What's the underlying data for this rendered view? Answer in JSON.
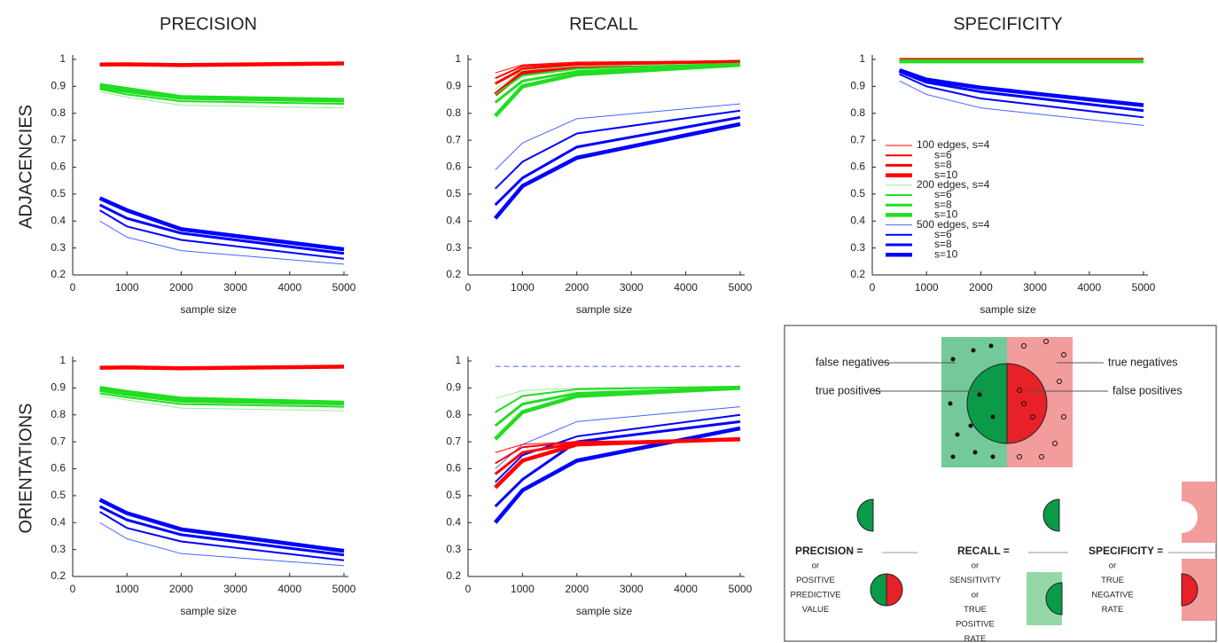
{
  "headers": {
    "columns": [
      "PRECISION",
      "RECALL",
      "SPECIFICITY"
    ],
    "rows": [
      "ADJACENCIES",
      "ORIENTATIONS"
    ]
  },
  "chart_data": [
    {
      "type": "line",
      "xlabel": "sample size",
      "x": [
        500,
        1000,
        2000,
        5000
      ],
      "xlim": [
        0,
        5000
      ],
      "xticks": [
        0,
        1000,
        2000,
        3000,
        4000,
        5000
      ],
      "ylim": [
        0.2,
        1
      ],
      "yticks": [
        0.2,
        0.3,
        0.4,
        0.5,
        0.6,
        0.7,
        0.8,
        0.9,
        1
      ],
      "series": [
        {
          "color": "#ff0000",
          "width": 1,
          "values": [
            0.978,
            0.979,
            0.976,
            0.982
          ]
        },
        {
          "color": "#ff0000",
          "width": 2,
          "values": [
            0.979,
            0.98,
            0.977,
            0.983
          ]
        },
        {
          "color": "#ff0000",
          "width": 3,
          "values": [
            0.98,
            0.981,
            0.978,
            0.984
          ]
        },
        {
          "color": "#ff0000",
          "width": 4.5,
          "values": [
            0.981,
            0.982,
            0.979,
            0.985
          ]
        },
        {
          "color": "#99ee99",
          "width": 1,
          "values": [
            0.88,
            0.86,
            0.83,
            0.82
          ]
        },
        {
          "color": "#22dd22",
          "width": 2,
          "values": [
            0.89,
            0.87,
            0.845,
            0.835
          ]
        },
        {
          "color": "#22dd22",
          "width": 3,
          "values": [
            0.895,
            0.88,
            0.855,
            0.845
          ]
        },
        {
          "color": "#22dd22",
          "width": 4.5,
          "values": [
            0.905,
            0.89,
            0.86,
            0.85
          ]
        },
        {
          "color": "#4466ff",
          "width": 1,
          "values": [
            0.4,
            0.34,
            0.29,
            0.24
          ]
        },
        {
          "color": "#0000ff",
          "width": 2,
          "values": [
            0.44,
            0.38,
            0.33,
            0.26
          ]
        },
        {
          "color": "#0000ff",
          "width": 3,
          "values": [
            0.46,
            0.41,
            0.355,
            0.28
          ]
        },
        {
          "color": "#0000ff",
          "width": 4.5,
          "values": [
            0.485,
            0.44,
            0.37,
            0.295
          ]
        }
      ]
    },
    {
      "type": "line",
      "xlabel": "sample size",
      "x": [
        500,
        1000,
        2000,
        5000
      ],
      "xlim": [
        0,
        5000
      ],
      "xticks": [
        0,
        1000,
        2000,
        3000,
        4000,
        5000
      ],
      "ylim": [
        0.2,
        1
      ],
      "yticks": [
        0.2,
        0.3,
        0.4,
        0.5,
        0.6,
        0.7,
        0.8,
        0.9,
        1
      ],
      "series": [
        {
          "color": "#ff0000",
          "width": 1,
          "values": [
            0.95,
            0.98,
            0.99,
            0.995
          ]
        },
        {
          "color": "#ff0000",
          "width": 2,
          "values": [
            0.93,
            0.975,
            0.985,
            0.995
          ]
        },
        {
          "color": "#ff0000",
          "width": 3,
          "values": [
            0.91,
            0.965,
            0.98,
            0.993
          ]
        },
        {
          "color": "#ff0000",
          "width": 4.5,
          "values": [
            0.87,
            0.95,
            0.975,
            0.99
          ]
        },
        {
          "color": "#99ee99",
          "width": 1,
          "values": [
            0.89,
            0.96,
            0.975,
            0.985
          ]
        },
        {
          "color": "#22dd22",
          "width": 2,
          "values": [
            0.87,
            0.94,
            0.965,
            0.985
          ]
        },
        {
          "color": "#22dd22",
          "width": 3,
          "values": [
            0.84,
            0.92,
            0.955,
            0.98
          ]
        },
        {
          "color": "#22dd22",
          "width": 4.5,
          "values": [
            0.79,
            0.9,
            0.945,
            0.98
          ]
        },
        {
          "color": "#4466ff",
          "width": 1,
          "values": [
            0.59,
            0.69,
            0.78,
            0.835
          ]
        },
        {
          "color": "#0000ff",
          "width": 2,
          "values": [
            0.52,
            0.62,
            0.725,
            0.81
          ]
        },
        {
          "color": "#0000ff",
          "width": 3,
          "values": [
            0.46,
            0.56,
            0.675,
            0.785
          ]
        },
        {
          "color": "#0000ff",
          "width": 4.5,
          "values": [
            0.41,
            0.53,
            0.635,
            0.76
          ]
        }
      ]
    },
    {
      "type": "line",
      "xlabel": "sample size",
      "x": [
        500,
        1000,
        2000,
        5000
      ],
      "xlim": [
        0,
        5000
      ],
      "xticks": [
        0,
        1000,
        2000,
        3000,
        4000,
        5000
      ],
      "ylim": [
        0.2,
        1
      ],
      "yticks": [
        0.2,
        0.3,
        0.4,
        0.5,
        0.6,
        0.7,
        0.8,
        0.9,
        1
      ],
      "legend": "left",
      "series": [
        {
          "name": "100 edges, s=4",
          "color": "#ff0000",
          "width": 1,
          "values": [
            0.999,
            0.999,
            0.999,
            0.999
          ]
        },
        {
          "name": "s=6",
          "color": "#ff0000",
          "width": 2,
          "values": [
            0.999,
            0.999,
            0.999,
            0.999
          ]
        },
        {
          "name": "s=8",
          "color": "#ff0000",
          "width": 3,
          "values": [
            0.999,
            0.999,
            0.999,
            0.999
          ]
        },
        {
          "name": "s=10",
          "color": "#ff0000",
          "width": 4.5,
          "values": [
            0.998,
            0.998,
            0.998,
            0.998
          ]
        },
        {
          "name": "200 edges, s=4",
          "color": "#99ee99",
          "width": 1,
          "values": [
            0.996,
            0.996,
            0.996,
            0.996
          ]
        },
        {
          "name": "s=6",
          "color": "#22dd22",
          "width": 2,
          "values": [
            0.995,
            0.995,
            0.995,
            0.995
          ]
        },
        {
          "name": "s=8",
          "color": "#22dd22",
          "width": 3,
          "values": [
            0.994,
            0.994,
            0.994,
            0.994
          ]
        },
        {
          "name": "s=10",
          "color": "#22dd22",
          "width": 4.5,
          "values": [
            0.993,
            0.993,
            0.993,
            0.993
          ]
        },
        {
          "name": "500 edges, s=4",
          "color": "#4466ff",
          "width": 1,
          "values": [
            0.92,
            0.87,
            0.82,
            0.755
          ]
        },
        {
          "name": "s=6",
          "color": "#0000ff",
          "width": 2,
          "values": [
            0.945,
            0.9,
            0.855,
            0.785
          ]
        },
        {
          "name": "s=8",
          "color": "#0000ff",
          "width": 3,
          "values": [
            0.955,
            0.915,
            0.88,
            0.81
          ]
        },
        {
          "name": "s=10",
          "color": "#0000ff",
          "width": 4.5,
          "values": [
            0.96,
            0.925,
            0.895,
            0.83
          ]
        }
      ]
    },
    {
      "type": "line",
      "xlabel": "sample size",
      "x": [
        500,
        1000,
        2000,
        5000
      ],
      "xlim": [
        0,
        5000
      ],
      "xticks": [
        0,
        1000,
        2000,
        3000,
        4000,
        5000
      ],
      "ylim": [
        0.2,
        1
      ],
      "yticks": [
        0.2,
        0.3,
        0.4,
        0.5,
        0.6,
        0.7,
        0.8,
        0.9,
        1
      ],
      "series": [
        {
          "color": "#ff0000",
          "width": 1,
          "values": [
            0.972,
            0.973,
            0.97,
            0.976
          ]
        },
        {
          "color": "#ff0000",
          "width": 2,
          "values": [
            0.973,
            0.974,
            0.971,
            0.977
          ]
        },
        {
          "color": "#ff0000",
          "width": 3,
          "values": [
            0.974,
            0.975,
            0.972,
            0.978
          ]
        },
        {
          "color": "#ff0000",
          "width": 4.5,
          "values": [
            0.975,
            0.976,
            0.973,
            0.979
          ]
        },
        {
          "color": "#99ee99",
          "width": 1,
          "values": [
            0.87,
            0.855,
            0.825,
            0.815
          ]
        },
        {
          "color": "#22dd22",
          "width": 2,
          "values": [
            0.88,
            0.865,
            0.84,
            0.83
          ]
        },
        {
          "color": "#22dd22",
          "width": 3,
          "values": [
            0.89,
            0.875,
            0.85,
            0.84
          ]
        },
        {
          "color": "#22dd22",
          "width": 4.5,
          "values": [
            0.9,
            0.885,
            0.86,
            0.845
          ]
        },
        {
          "color": "#4466ff",
          "width": 1,
          "values": [
            0.4,
            0.34,
            0.285,
            0.24
          ]
        },
        {
          "color": "#0000ff",
          "width": 2,
          "values": [
            0.44,
            0.38,
            0.33,
            0.26
          ]
        },
        {
          "color": "#0000ff",
          "width": 3,
          "values": [
            0.46,
            0.41,
            0.355,
            0.28
          ]
        },
        {
          "color": "#0000ff",
          "width": 4.5,
          "values": [
            0.485,
            0.435,
            0.375,
            0.295
          ]
        }
      ]
    },
    {
      "type": "line",
      "xlabel": "sample size",
      "x": [
        500,
        1000,
        2000,
        5000
      ],
      "xlim": [
        0,
        5000
      ],
      "xticks": [
        0,
        1000,
        2000,
        3000,
        4000,
        5000
      ],
      "ylim": [
        0.2,
        1
      ],
      "yticks": [
        0.2,
        0.3,
        0.4,
        0.5,
        0.6,
        0.7,
        0.8,
        0.9,
        1
      ],
      "series": [
        {
          "color": "#4466ff",
          "width": 1,
          "dash": true,
          "values": [
            0.98,
            0.98,
            0.98,
            0.98
          ]
        },
        {
          "color": "#99ee99",
          "width": 1,
          "values": [
            0.86,
            0.89,
            0.9,
            0.905
          ]
        },
        {
          "color": "#22dd22",
          "width": 2,
          "values": [
            0.81,
            0.87,
            0.895,
            0.905
          ]
        },
        {
          "color": "#22dd22",
          "width": 3,
          "values": [
            0.76,
            0.84,
            0.88,
            0.9
          ]
        },
        {
          "color": "#22dd22",
          "width": 4.5,
          "values": [
            0.71,
            0.81,
            0.87,
            0.9
          ]
        },
        {
          "color": "#4466ff",
          "width": 1,
          "values": [
            0.6,
            0.69,
            0.775,
            0.83
          ]
        },
        {
          "color": "#0000ff",
          "width": 2,
          "values": [
            0.55,
            0.65,
            0.72,
            0.8
          ]
        },
        {
          "color": "#0000ff",
          "width": 3,
          "values": [
            0.46,
            0.56,
            0.7,
            0.775
          ]
        },
        {
          "color": "#0000ff",
          "width": 4.5,
          "values": [
            0.4,
            0.52,
            0.63,
            0.75
          ]
        },
        {
          "color": "#ff0000",
          "width": 1,
          "values": [
            0.66,
            0.69,
            0.7,
            0.705
          ]
        },
        {
          "color": "#ff0000",
          "width": 2,
          "values": [
            0.62,
            0.68,
            0.7,
            0.705
          ]
        },
        {
          "color": "#ff0000",
          "width": 3,
          "values": [
            0.58,
            0.66,
            0.695,
            0.71
          ]
        },
        {
          "color": "#ff0000",
          "width": 4.5,
          "values": [
            0.53,
            0.63,
            0.69,
            0.71
          ]
        }
      ]
    }
  ],
  "diagram": {
    "labels": {
      "false_negatives": "false negatives",
      "true_negatives": "true negatives",
      "true_positives": "true positives",
      "false_positives": "false positives"
    },
    "formulas": [
      {
        "term": "PRECISION =",
        "notes": [
          "or",
          "POSITIVE",
          "PREDICTIVE",
          "VALUE"
        ]
      },
      {
        "term": "RECALL =",
        "notes": [
          "or",
          "SENSITIVITY",
          "or",
          "TRUE",
          "POSITIVE",
          "RATE"
        ]
      },
      {
        "term": "SPECIFICITY =",
        "notes": [
          "or",
          "TRUE",
          "NEGATIVE",
          "RATE"
        ]
      }
    ]
  }
}
